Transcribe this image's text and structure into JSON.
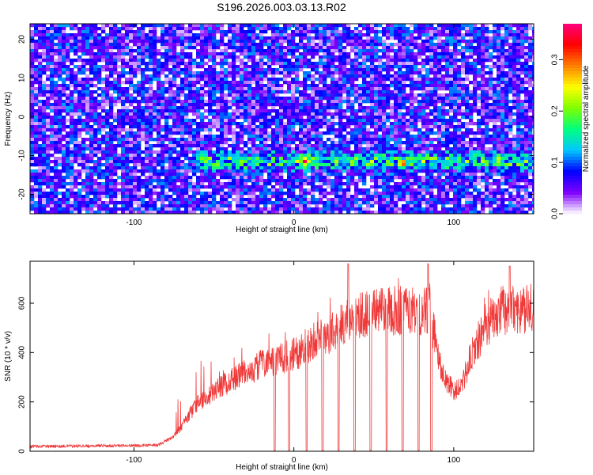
{
  "figure": {
    "title": "S196.2026.003.03.13.R02"
  },
  "chart_data": [
    {
      "type": "heatmap",
      "xlabel": "Height of straight line (km)",
      "ylabel": "Frequency (Hz)",
      "xlim": [
        -165,
        150
      ],
      "ylim": [
        -25,
        24
      ],
      "x_ticks": [
        -100,
        0,
        100
      ],
      "y_ticks": [
        -20,
        -10,
        0,
        10,
        20
      ],
      "grid": false,
      "colorbar": {
        "label": "Normalized spectral amplitude",
        "range": [
          0,
          0.37
        ],
        "ticks": [
          0.0,
          0.1,
          0.2,
          0.3
        ],
        "tick_labels": [
          "0.0",
          "0.1",
          "0.2",
          "0.3"
        ],
        "colormap": [
          "#ffffff",
          "#7f00ff",
          "#0000ff",
          "#00c8ff",
          "#00ff7f",
          "#7fff00",
          "#ffff00",
          "#ff8000",
          "#ff0000",
          "#ff0080"
        ]
      },
      "signal_band": {
        "freq_center": -11.5,
        "freq_halfwidth": 1.5,
        "x_range": [
          -62,
          150
        ]
      },
      "hot_spots": [
        {
          "x": 7,
          "y": -11.5,
          "value": 0.36
        },
        {
          "x": 68,
          "y": -12,
          "value": 0.33
        },
        {
          "x": 128,
          "y": -11,
          "value": 0.24
        },
        {
          "x": -55,
          "y": -13,
          "value": 0.17
        },
        {
          "x": 15,
          "y": -12,
          "value": 0.16
        }
      ],
      "background_level": [
        0.02,
        0.08
      ]
    },
    {
      "type": "line",
      "xlabel": "Height of straight line (km)",
      "ylabel": "SNR (10 * v/v)",
      "xlim": [
        -165,
        150
      ],
      "ylim": [
        0,
        770
      ],
      "x_ticks": [
        -100,
        0,
        100
      ],
      "y_ticks": [
        0,
        200,
        400,
        600
      ],
      "grid": false,
      "series": [
        {
          "color": "#f03a3a",
          "baseline_profile": {
            "x": [
              -165,
              -85,
              -75,
              -60,
              -40,
              -20,
              0,
              20,
              40,
              60,
              75,
              85,
              90,
              95,
              100,
              105,
              110,
              120,
              130,
              150
            ],
            "y": [
              20,
              25,
              60,
              200,
              290,
              360,
              400,
              480,
              560,
              580,
              585,
              575,
              400,
              290,
              250,
              270,
              380,
              520,
              580,
              590
            ]
          },
          "dropouts_x": [
            -12,
            -3,
            8,
            18,
            28,
            38,
            48,
            58,
            68,
            78,
            86
          ],
          "peaks": [
            {
              "x": 34,
              "y": 760
            },
            {
              "x": 84,
              "y": 760
            },
            {
              "x": 135,
              "y": 750
            }
          ]
        }
      ]
    }
  ]
}
